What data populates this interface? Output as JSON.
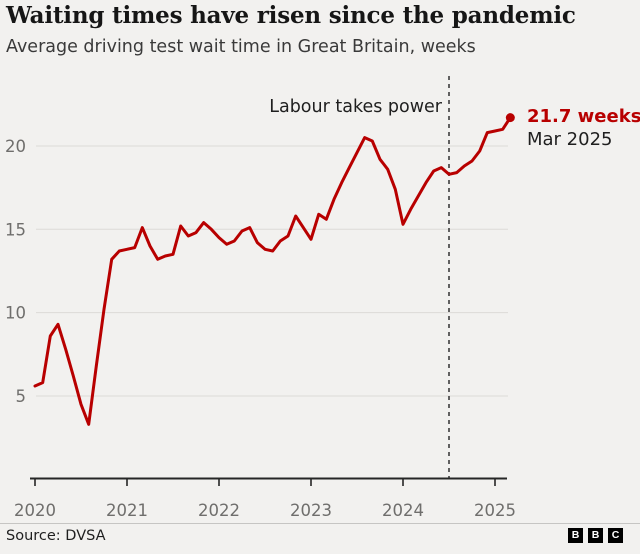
{
  "header": {
    "title": "Waiting times have risen since the pandemic",
    "subtitle": "Average driving test wait time in Great Britain, weeks"
  },
  "annotations": {
    "event_label": "Labour takes power",
    "event_month_index": 54,
    "event_date": "Jul 2024",
    "latest_value_label": "21.7 weeks",
    "latest_date_label": "Mar 2025"
  },
  "footer": {
    "source": "Source: DVSA",
    "logo_letters": [
      "B",
      "B",
      "C"
    ]
  },
  "chart_data": {
    "type": "line",
    "title": "Waiting times have risen since the pandemic",
    "subtitle": "Average driving test wait time in Great Britain, weeks",
    "unit": "weeks",
    "x_start": "Jan 2020",
    "x_end": "Mar 2025",
    "x_frequency": "monthly",
    "x_tick_labels": [
      "2020",
      "2021",
      "2022",
      "2023",
      "2024",
      "2025"
    ],
    "y_ticks": [
      5,
      10,
      15,
      20
    ],
    "ylim": [
      0,
      22.8
    ],
    "grid": "horizontal",
    "legend": "none",
    "line_color": "#b80000",
    "axis_color": "#262626",
    "grid_color": "#dcdad7",
    "tick_label_color": "#6f6e6c",
    "series": [
      {
        "name": "Average driving test wait time (weeks)",
        "values": [
          5.6,
          5.8,
          8.6,
          9.3,
          7.8,
          6.2,
          4.5,
          3.3,
          6.8,
          10.2,
          13.2,
          13.7,
          13.8,
          13.9,
          15.1,
          14.0,
          13.2,
          13.4,
          13.5,
          15.2,
          14.6,
          14.8,
          15.4,
          15.0,
          14.5,
          14.1,
          14.3,
          14.9,
          15.1,
          14.2,
          13.8,
          13.7,
          14.3,
          14.6,
          15.8,
          15.1,
          14.4,
          15.9,
          15.6,
          16.8,
          17.8,
          18.7,
          19.6,
          20.5,
          20.3,
          19.2,
          18.6,
          17.4,
          15.3,
          16.2,
          17.0,
          17.8,
          18.5,
          18.7,
          18.3,
          18.4,
          18.8,
          19.1,
          19.7,
          20.8,
          20.9,
          21.0,
          21.7
        ]
      }
    ],
    "annotations": [
      {
        "type": "vline",
        "style": "dashed",
        "label": "Labour takes power",
        "x": "Jul 2024"
      },
      {
        "type": "point-label",
        "label": "21.7 weeks",
        "sublabel": "Mar 2025",
        "x": "Mar 2025",
        "y": 21.7
      }
    ]
  }
}
